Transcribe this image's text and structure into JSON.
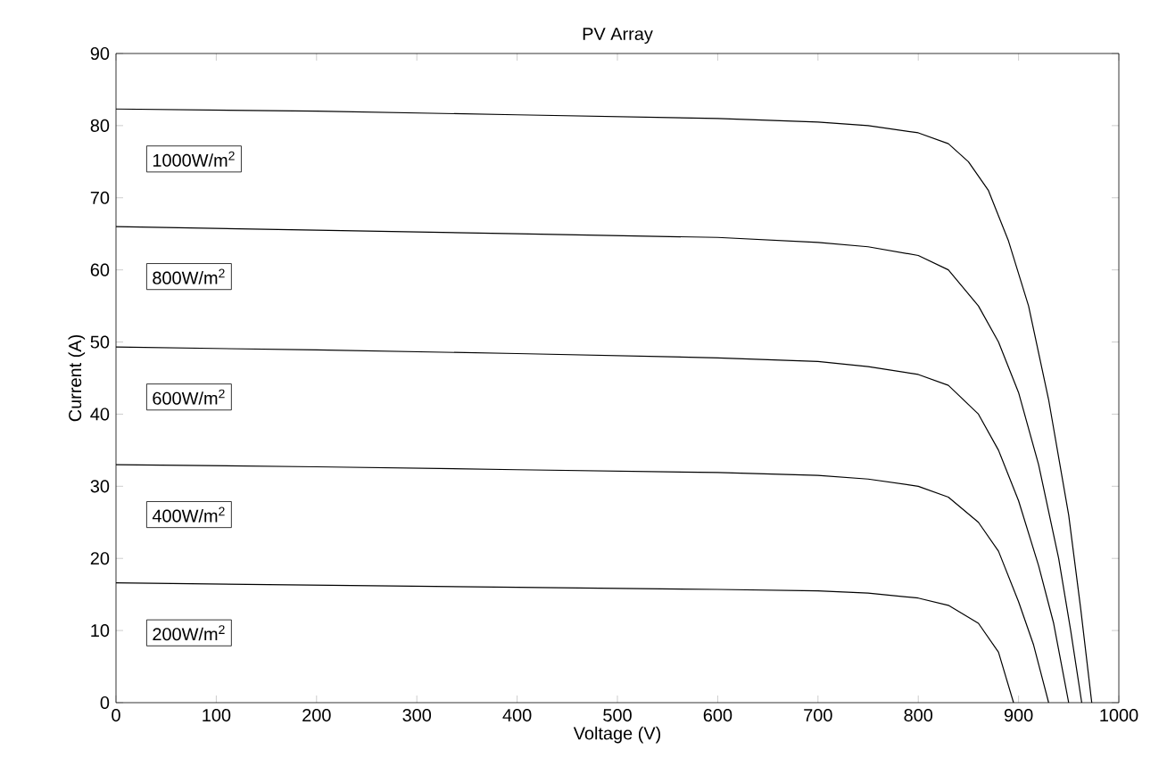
{
  "chart_data": {
    "type": "line",
    "title": "PV Array",
    "xlabel": "Voltage (V)",
    "ylabel": "Current (A)",
    "xlim": [
      0,
      1000
    ],
    "ylim": [
      0,
      90
    ],
    "xticks": [
      0,
      100,
      200,
      300,
      400,
      500,
      600,
      700,
      800,
      900,
      1000
    ],
    "yticks": [
      0,
      10,
      20,
      30,
      40,
      50,
      60,
      70,
      80,
      90
    ],
    "grid": false,
    "legend": false,
    "marker": "none",
    "line_style": "solid",
    "series": [
      {
        "name": "1000W/m$^{2}$",
        "color": "#000000",
        "x": [
          0,
          200,
          400,
          600,
          700,
          750,
          800,
          830,
          850,
          870,
          890,
          910,
          930,
          950,
          962,
          973
        ],
        "values": [
          82.3,
          82,
          81.5,
          81,
          80.5,
          80,
          79,
          77.5,
          75,
          71,
          64,
          55,
          42,
          26,
          13,
          0
        ]
      },
      {
        "name": "800W/m$^{2}$",
        "color": "#000000",
        "x": [
          0,
          200,
          400,
          600,
          700,
          750,
          800,
          830,
          860,
          880,
          900,
          920,
          940,
          952,
          963
        ],
        "values": [
          66,
          65.5,
          65,
          64.5,
          63.8,
          63.2,
          62,
          60,
          55,
          50,
          43,
          33,
          20,
          10,
          0
        ]
      },
      {
        "name": "600W/m$^{2}$",
        "color": "#000000",
        "x": [
          0,
          200,
          400,
          600,
          700,
          750,
          800,
          830,
          860,
          880,
          900,
          920,
          935,
          950
        ],
        "values": [
          49.3,
          48.9,
          48.4,
          47.8,
          47.3,
          46.6,
          45.5,
          44,
          40,
          35,
          28,
          19,
          11,
          0
        ]
      },
      {
        "name": "400W/m$^{2}$",
        "color": "#000000",
        "x": [
          0,
          200,
          400,
          600,
          700,
          750,
          800,
          830,
          860,
          880,
          900,
          915,
          930
        ],
        "values": [
          33,
          32.7,
          32.3,
          31.9,
          31.5,
          31,
          30,
          28.5,
          25,
          21,
          14,
          8,
          0
        ]
      },
      {
        "name": "200W/m$^{2}$",
        "color": "#000000",
        "x": [
          0,
          200,
          400,
          600,
          700,
          750,
          800,
          830,
          860,
          880,
          895
        ],
        "values": [
          16.6,
          16.3,
          16,
          15.7,
          15.5,
          15.2,
          14.5,
          13.5,
          11,
          7,
          0
        ]
      }
    ]
  }
}
